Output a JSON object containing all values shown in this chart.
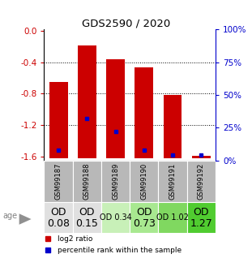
{
  "title": "GDS2590 / 2020",
  "samples": [
    "GSM99187",
    "GSM99188",
    "GSM99189",
    "GSM99190",
    "GSM99191",
    "GSM99192"
  ],
  "bar_tops": [
    -0.65,
    -0.18,
    -0.36,
    -0.46,
    -0.82,
    -1.59
  ],
  "bar_bottom": -1.62,
  "percentile_ranks": [
    0.08,
    0.32,
    0.22,
    0.08,
    0.04,
    0.04
  ],
  "od_values": [
    "OD\n0.08",
    "OD\n0.15",
    "OD 0.34",
    "OD\n0.73",
    "OD 1.02",
    "OD\n1.27"
  ],
  "od_fontsize": [
    9,
    9,
    7,
    9,
    7,
    9
  ],
  "od_bg_colors": [
    "#e0e0e0",
    "#e0e0e0",
    "#c8f0b8",
    "#a8e890",
    "#80d860",
    "#50cc30"
  ],
  "ylim_min": -1.65,
  "ylim_max": 0.02,
  "yticks_left": [
    0.0,
    -0.4,
    -0.8,
    -1.2,
    -1.6
  ],
  "yticks_right": [
    100,
    75,
    50,
    25,
    0
  ],
  "bar_color": "#cc0000",
  "dot_color": "#0000cc",
  "label_color_left": "#cc0000",
  "label_color_right": "#0000cc",
  "header_bg": "#b8b8b8"
}
